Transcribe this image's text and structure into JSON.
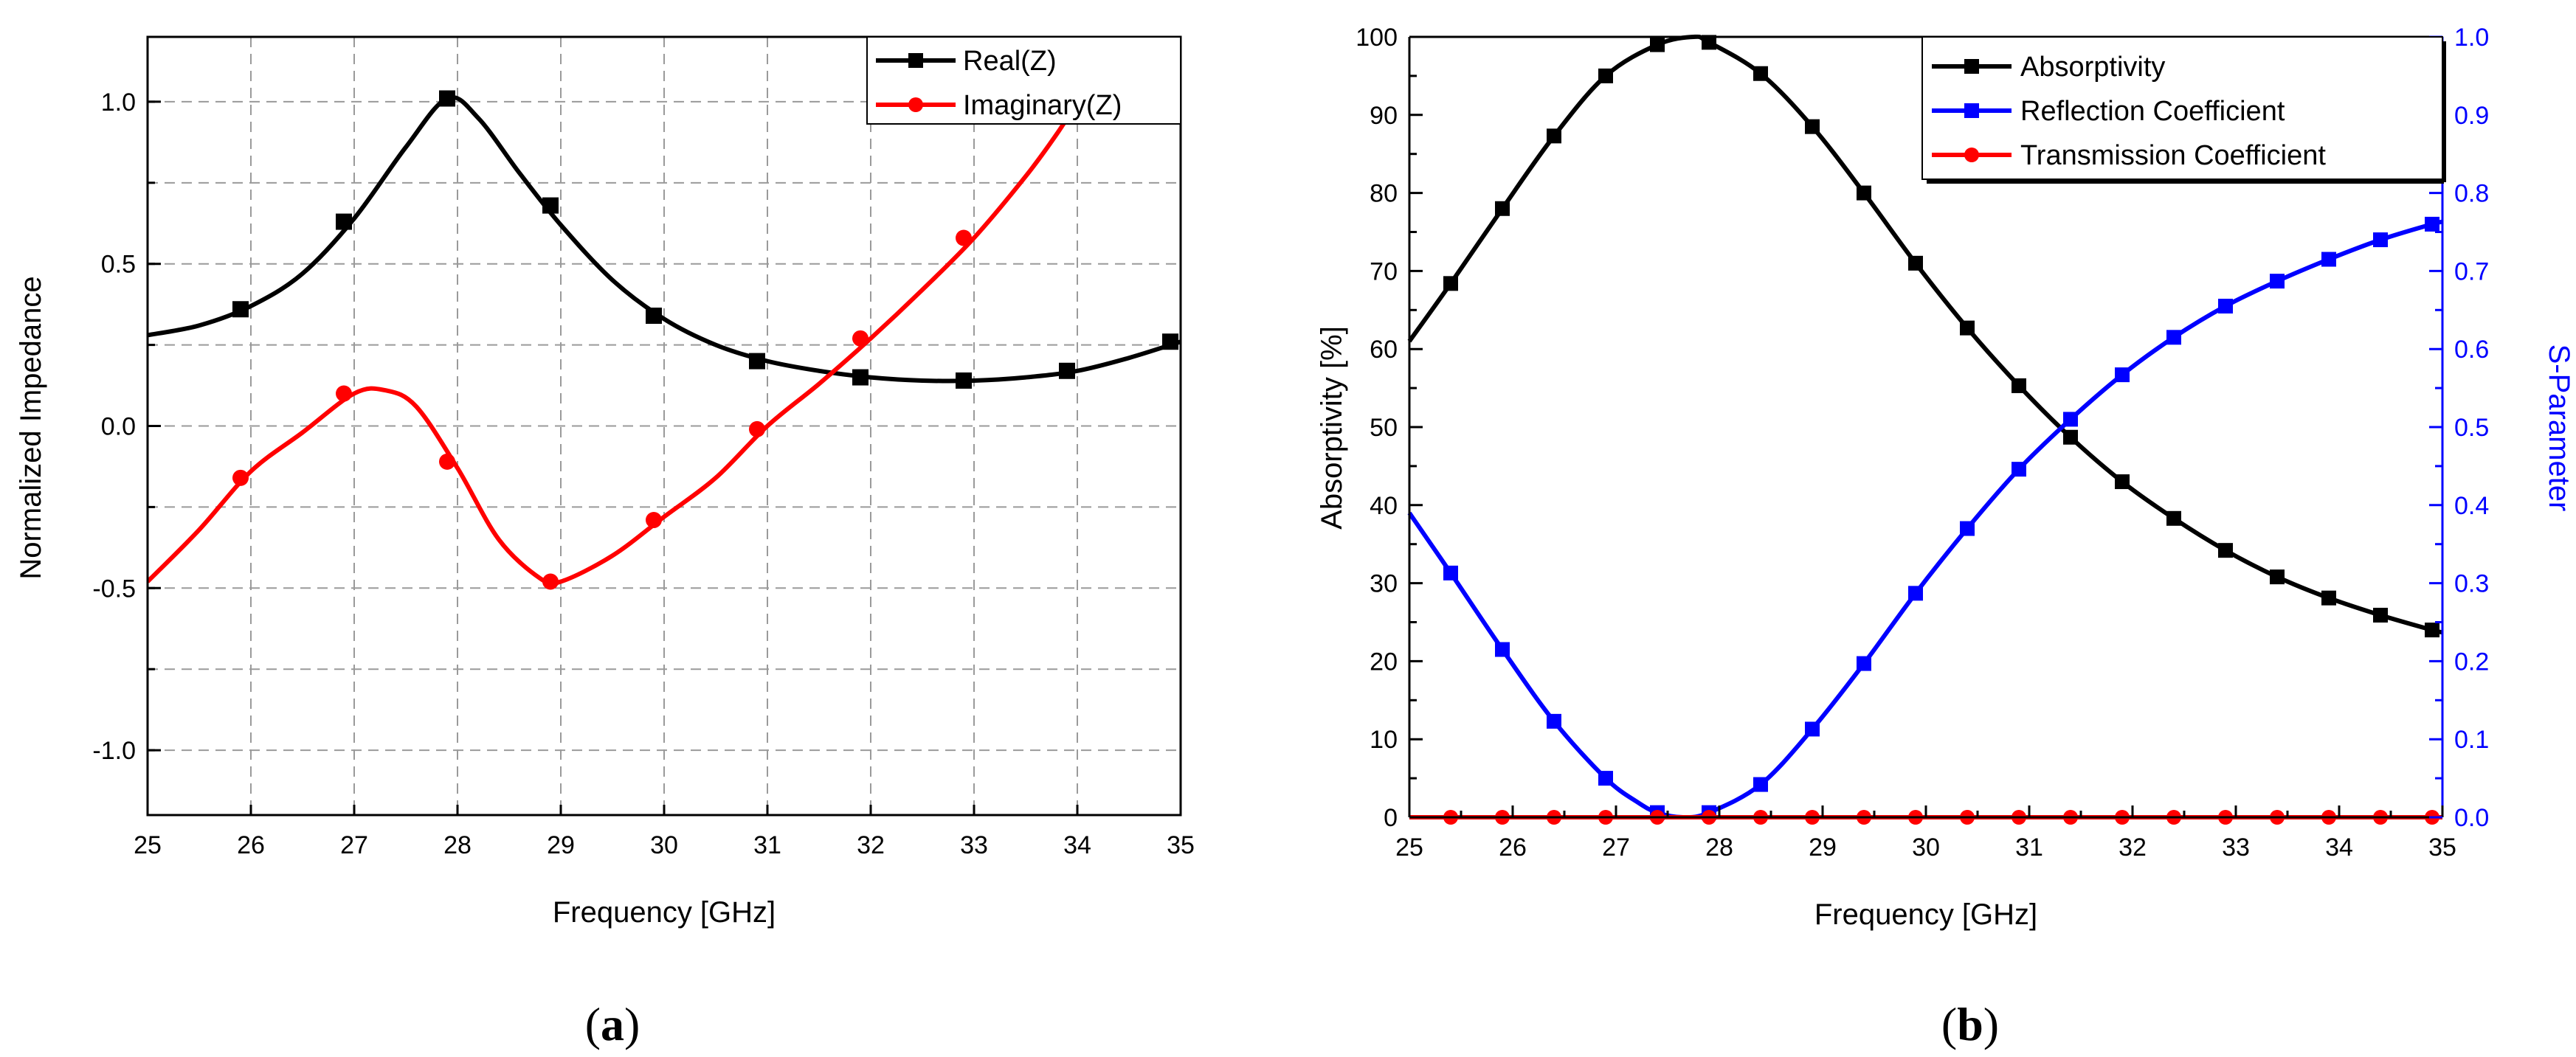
{
  "chart_data": [
    {
      "type": "line",
      "panel_label": "a",
      "xlabel": "Frequency [GHz]",
      "ylabel": "Normalized Impedance",
      "xlim": [
        25,
        35
      ],
      "ylim": [
        -1.2,
        1.2
      ],
      "xticks": [
        25,
        26,
        27,
        28,
        29,
        30,
        31,
        32,
        33,
        34,
        35
      ],
      "yticks": [
        1.0,
        0.5,
        0.0,
        -0.5,
        -1.0
      ],
      "ytick_labels": [
        "1.0",
        "0.5",
        "0.0",
        "-0.5",
        "-1.0"
      ],
      "grid": true,
      "legend": "top-right",
      "series": [
        {
          "name": "Real(Z)",
          "color": "#000000",
          "marker": "square",
          "curve": [
            [
              25,
              0.28
            ],
            [
              25.5,
              0.31
            ],
            [
              26,
              0.37
            ],
            [
              26.5,
              0.47
            ],
            [
              27,
              0.64
            ],
            [
              27.5,
              0.86
            ],
            [
              27.9,
              1.01
            ],
            [
              28.2,
              0.95
            ],
            [
              28.6,
              0.78
            ],
            [
              29,
              0.62
            ],
            [
              29.5,
              0.45
            ],
            [
              30,
              0.33
            ],
            [
              30.5,
              0.25
            ],
            [
              31,
              0.2
            ],
            [
              31.5,
              0.17
            ],
            [
              32,
              0.15
            ],
            [
              32.5,
              0.14
            ],
            [
              33,
              0.14
            ],
            [
              33.5,
              0.15
            ],
            [
              34,
              0.17
            ],
            [
              34.5,
              0.21
            ],
            [
              35,
              0.26
            ]
          ],
          "markers": [
            [
              25.9,
              0.36
            ],
            [
              26.9,
              0.63
            ],
            [
              27.9,
              1.01
            ],
            [
              28.9,
              0.68
            ],
            [
              29.9,
              0.34
            ],
            [
              30.9,
              0.2
            ],
            [
              31.9,
              0.15
            ],
            [
              32.9,
              0.14
            ],
            [
              33.9,
              0.17
            ],
            [
              34.9,
              0.26
            ]
          ]
        },
        {
          "name": "Imaginary(Z)",
          "color": "#ff0000",
          "marker": "circle",
          "curve": [
            [
              25,
              -0.48
            ],
            [
              25.5,
              -0.32
            ],
            [
              26,
              -0.14
            ],
            [
              26.5,
              -0.02
            ],
            [
              27,
              0.1
            ],
            [
              27.3,
              0.11
            ],
            [
              27.6,
              0.06
            ],
            [
              28,
              -0.13
            ],
            [
              28.4,
              -0.35
            ],
            [
              28.8,
              -0.47
            ],
            [
              29,
              -0.48
            ],
            [
              29.5,
              -0.4
            ],
            [
              30,
              -0.28
            ],
            [
              30.5,
              -0.16
            ],
            [
              31,
              0.0
            ],
            [
              31.5,
              0.13
            ],
            [
              32,
              0.27
            ],
            [
              32.5,
              0.42
            ],
            [
              33,
              0.58
            ],
            [
              33.5,
              0.77
            ],
            [
              33.8,
              0.9
            ],
            [
              34,
              1.0
            ]
          ],
          "markers": [
            [
              25.9,
              -0.16
            ],
            [
              26.9,
              0.1
            ],
            [
              27.9,
              -0.11
            ],
            [
              28.9,
              -0.48
            ],
            [
              29.9,
              -0.29
            ],
            [
              30.9,
              -0.01
            ],
            [
              31.9,
              0.27
            ],
            [
              32.9,
              0.58
            ]
          ]
        }
      ]
    },
    {
      "type": "line",
      "panel_label": "b",
      "xlabel": "Frequency [GHz]",
      "ylabel": "Absorptivity [%]",
      "ylabel_right": "S-Parameter",
      "xlim": [
        25,
        35
      ],
      "ylim": [
        0,
        100
      ],
      "ylim_right": [
        0,
        1
      ],
      "xticks": [
        25,
        26,
        27,
        28,
        29,
        30,
        31,
        32,
        33,
        34,
        35
      ],
      "yticks": [
        0,
        10,
        20,
        30,
        40,
        50,
        60,
        70,
        80,
        90,
        100
      ],
      "ytick_labels": [
        "0",
        "10",
        "20",
        "30",
        "40",
        "50",
        "60",
        "70",
        "80",
        "90",
        "100"
      ],
      "yticks_right": [
        0.0,
        0.1,
        0.2,
        0.3,
        0.4,
        0.5,
        0.6,
        0.7,
        0.8,
        0.9,
        1.0
      ],
      "ytick_labels_right": [
        "0.0",
        "0.1",
        "0.2",
        "0.3",
        "0.4",
        "0.5",
        "0.6",
        "0.7",
        "0.8",
        "0.9",
        "1.0"
      ],
      "grid": false,
      "legend": "top-right",
      "series": [
        {
          "name": "Absorptivity",
          "axis": "left",
          "color": "#000000",
          "marker": "square",
          "curve": [
            [
              25,
              61
            ],
            [
              25.4,
              68.4
            ],
            [
              25.9,
              78
            ],
            [
              26.4,
              87.3
            ],
            [
              26.9,
              95
            ],
            [
              27.4,
              99
            ],
            [
              27.75,
              100
            ],
            [
              27.9,
              99.3
            ],
            [
              28.4,
              95.3
            ],
            [
              28.9,
              88.5
            ],
            [
              29.4,
              80
            ],
            [
              29.9,
              71
            ],
            [
              30.4,
              62.7
            ],
            [
              30.9,
              55.3
            ],
            [
              31.4,
              48.7
            ],
            [
              31.9,
              43
            ],
            [
              32.4,
              38.3
            ],
            [
              32.9,
              34.2
            ],
            [
              33.4,
              30.8
            ],
            [
              33.9,
              28.1
            ],
            [
              34.4,
              25.9
            ],
            [
              34.9,
              24
            ],
            [
              35,
              23.7
            ]
          ],
          "markers": [
            [
              25.4,
              68.4
            ],
            [
              25.9,
              78
            ],
            [
              26.4,
              87.3
            ],
            [
              26.9,
              95
            ],
            [
              27.4,
              99
            ],
            [
              27.9,
              99.3
            ],
            [
              28.4,
              95.3
            ],
            [
              28.9,
              88.5
            ],
            [
              29.4,
              80
            ],
            [
              29.9,
              71
            ],
            [
              30.4,
              62.7
            ],
            [
              30.9,
              55.3
            ],
            [
              31.4,
              48.7
            ],
            [
              31.9,
              43
            ],
            [
              32.4,
              38.3
            ],
            [
              32.9,
              34.2
            ],
            [
              33.4,
              30.8
            ],
            [
              33.9,
              28.1
            ],
            [
              34.4,
              25.9
            ],
            [
              34.9,
              24
            ]
          ]
        },
        {
          "name": "Reflection Coefficient",
          "axis": "right",
          "color": "#0000ff",
          "marker": "square",
          "curve": [
            [
              25,
              0.39
            ],
            [
              25.4,
              0.313
            ],
            [
              25.9,
              0.215
            ],
            [
              26.4,
              0.123
            ],
            [
              26.9,
              0.05
            ],
            [
              27.2,
              0.02
            ],
            [
              27.4,
              0.006
            ],
            [
              27.65,
              0.0
            ],
            [
              27.9,
              0.006
            ],
            [
              28.4,
              0.042
            ],
            [
              28.9,
              0.113
            ],
            [
              29.4,
              0.197
            ],
            [
              29.9,
              0.287
            ],
            [
              30.4,
              0.37
            ],
            [
              30.9,
              0.446
            ],
            [
              31.4,
              0.51
            ],
            [
              31.9,
              0.567
            ],
            [
              32.4,
              0.615
            ],
            [
              32.9,
              0.655
            ],
            [
              33.4,
              0.687
            ],
            [
              33.9,
              0.715
            ],
            [
              34.4,
              0.74
            ],
            [
              34.9,
              0.76
            ],
            [
              35,
              0.763
            ]
          ],
          "markers": [
            [
              25.4,
              0.313
            ],
            [
              25.9,
              0.215
            ],
            [
              26.4,
              0.123
            ],
            [
              26.9,
              0.05
            ],
            [
              27.4,
              0.006
            ],
            [
              27.9,
              0.006
            ],
            [
              28.4,
              0.042
            ],
            [
              28.9,
              0.113
            ],
            [
              29.4,
              0.197
            ],
            [
              29.9,
              0.287
            ],
            [
              30.4,
              0.37
            ],
            [
              30.9,
              0.446
            ],
            [
              31.4,
              0.51
            ],
            [
              31.9,
              0.567
            ],
            [
              32.4,
              0.615
            ],
            [
              32.9,
              0.655
            ],
            [
              33.4,
              0.687
            ],
            [
              33.9,
              0.715
            ],
            [
              34.4,
              0.74
            ],
            [
              34.9,
              0.76
            ]
          ]
        },
        {
          "name": "Transmission Coefficient",
          "axis": "right",
          "color": "#ff0000",
          "marker": "circle",
          "curve": [
            [
              25,
              0.0
            ],
            [
              35,
              0.0
            ]
          ],
          "markers": [
            [
              25.4,
              0.0
            ],
            [
              25.9,
              0.0
            ],
            [
              26.4,
              0.0
            ],
            [
              26.9,
              0.0
            ],
            [
              27.4,
              0.0
            ],
            [
              27.9,
              0.0
            ],
            [
              28.4,
              0.0
            ],
            [
              28.9,
              0.0
            ],
            [
              29.4,
              0.0
            ],
            [
              29.9,
              0.0
            ],
            [
              30.4,
              0.0
            ],
            [
              30.9,
              0.0
            ],
            [
              31.4,
              0.0
            ],
            [
              31.9,
              0.0
            ],
            [
              32.4,
              0.0
            ],
            [
              32.9,
              0.0
            ],
            [
              33.4,
              0.0
            ],
            [
              33.9,
              0.0
            ],
            [
              34.4,
              0.0
            ],
            [
              34.9,
              0.0
            ]
          ]
        }
      ]
    }
  ]
}
